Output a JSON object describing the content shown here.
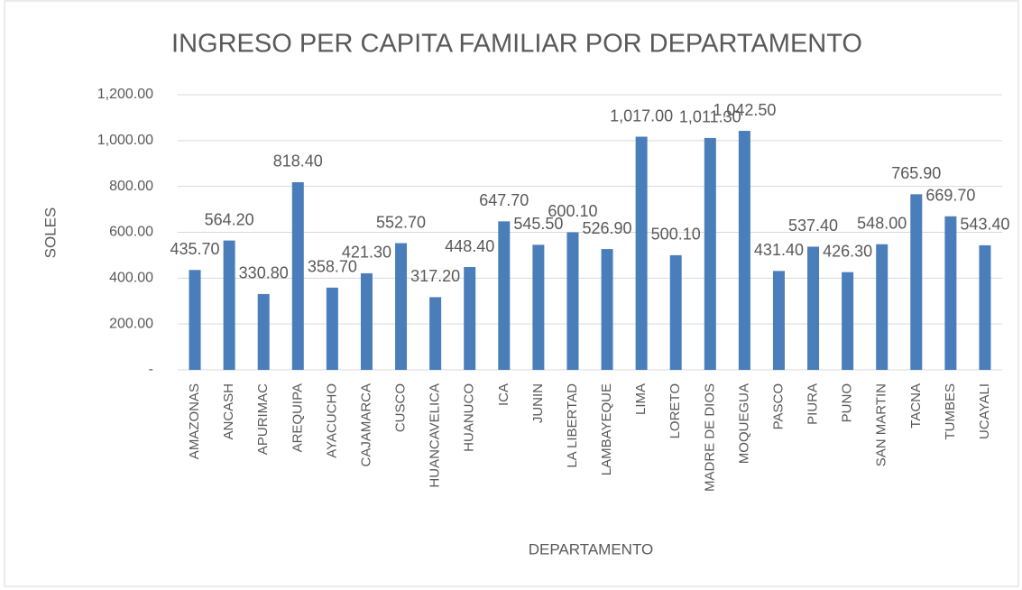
{
  "chart_data": {
    "type": "bar",
    "title": "INGRESO PER CAPITA FAMILIAR POR DEPARTAMENTO",
    "x_label": "DEPARTAMENTO",
    "y_label": "SOLES",
    "categories": [
      "AMAZONAS",
      "ANCASH",
      "APURIMAC",
      "AREQUIPA",
      "AYACUCHO",
      "CAJAMARCA",
      "CUSCO",
      "HUANCAVELICA",
      "HUANUCO",
      "ICA",
      "JUNIN",
      "LA LIBERTAD",
      "LAMBAYEQUE",
      "LIMA",
      "LORETO",
      "MADRE DE DIOS",
      "MOQUEGUA",
      "PASCO",
      "PIURA",
      "PUNO",
      "SAN MARTIN",
      "TACNA",
      "TUMBES",
      "UCAYALI"
    ],
    "values": [
      435.7,
      564.2,
      330.8,
      818.4,
      358.7,
      421.3,
      552.7,
      317.2,
      448.4,
      647.7,
      545.5,
      600.1,
      526.9,
      1017.0,
      500.1,
      1011.3,
      1042.5,
      431.4,
      537.4,
      426.3,
      548.0,
      765.9,
      669.7,
      543.4
    ],
    "value_labels": [
      "435.70",
      "564.20",
      "330.80",
      "818.40",
      "358.70",
      "421.30",
      "552.70",
      "317.20",
      "448.40",
      "647.70",
      "545.50",
      "600.10",
      "526.90",
      "1,017.00",
      "500.10",
      "1,011.30",
      "1,042.50",
      "431.40",
      "537.40",
      "426.30",
      "548.00",
      "765.90",
      "669.70",
      "543.40"
    ],
    "color": "#4a7ebb",
    "ylim": [
      0,
      1200
    ],
    "yticks": [
      {
        "value": 0,
        "label": "-"
      },
      {
        "value": 200,
        "label": "200.00"
      },
      {
        "value": 400,
        "label": "400.00"
      },
      {
        "value": 600,
        "label": "600.00"
      },
      {
        "value": 800,
        "label": "800.00"
      },
      {
        "value": 1000,
        "label": "1,000.00"
      },
      {
        "value": 1200,
        "label": "1,200.00"
      }
    ],
    "grid": true
  }
}
